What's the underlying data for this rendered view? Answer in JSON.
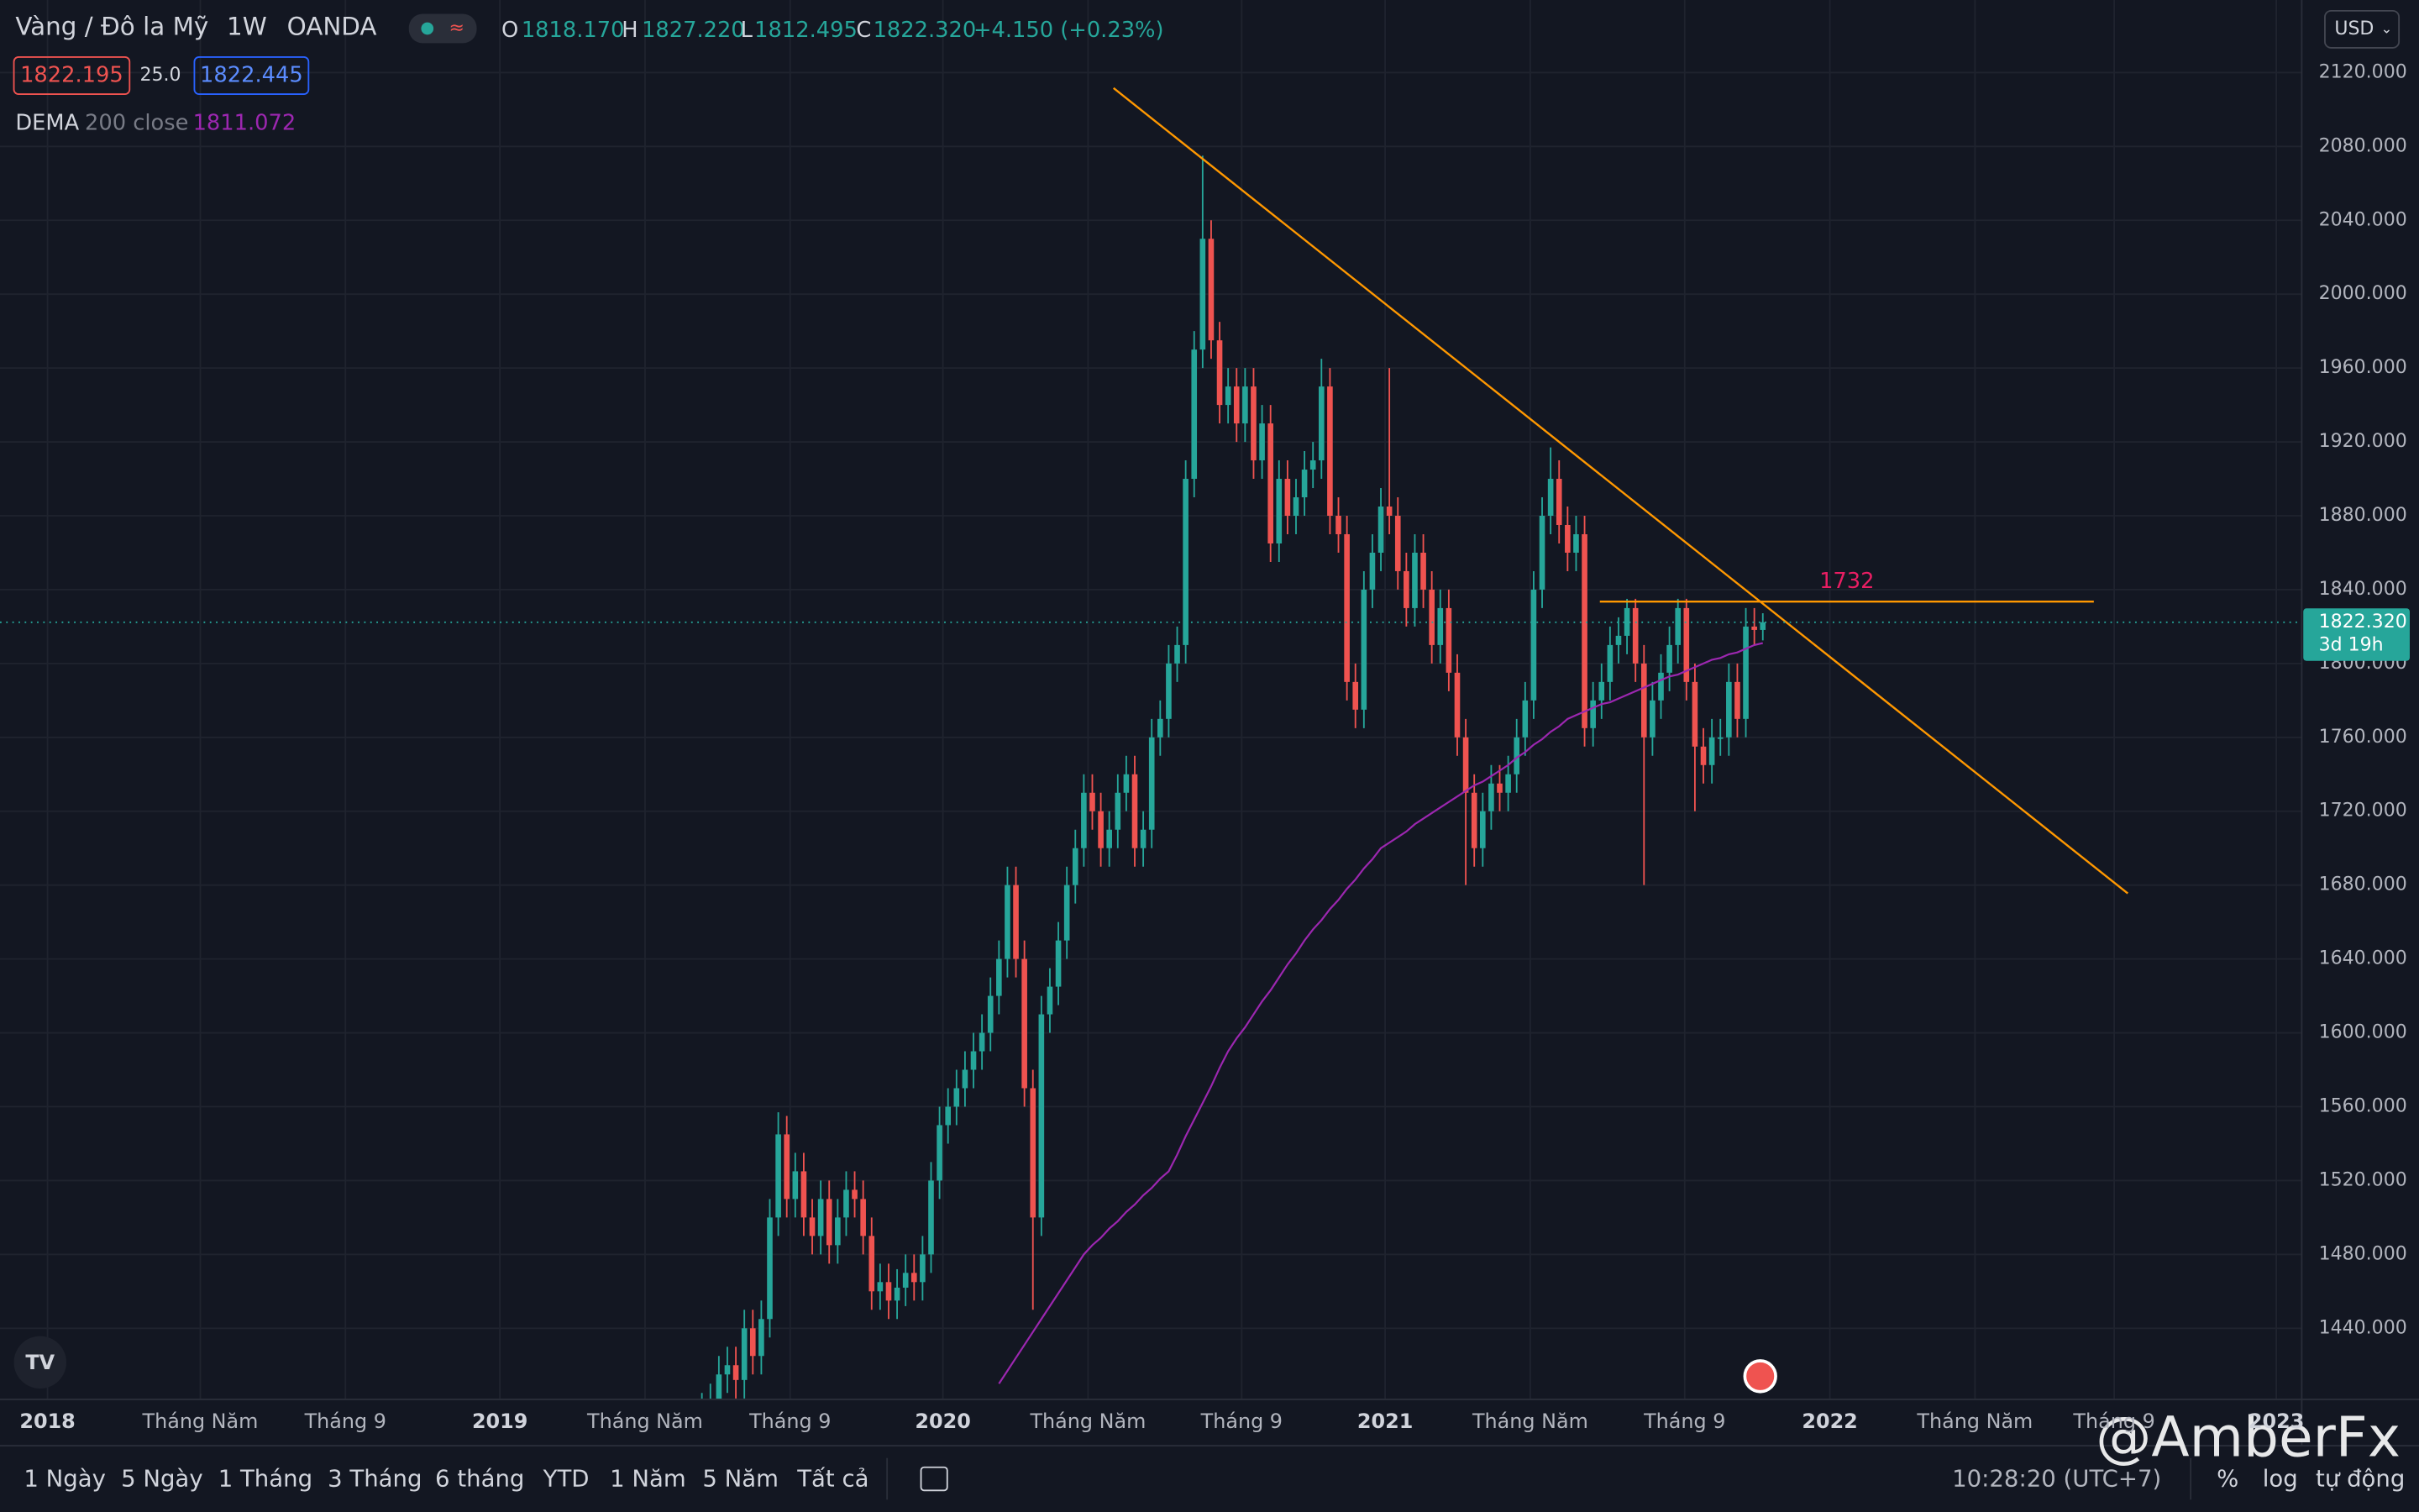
{
  "header": {
    "symbol": "Vàng / Đô la Mỹ",
    "interval": "1W",
    "exchange": "OANDA",
    "ohlc": [
      {
        "key": "O",
        "value": 1818.17,
        "label": "1818.170"
      },
      {
        "key": "H",
        "value": 1827.22,
        "label": "1827.220"
      },
      {
        "key": "L",
        "value": 1812.495,
        "label": "1812.495"
      },
      {
        "key": "C",
        "value": 1822.32,
        "label": "1822.320"
      }
    ],
    "change": "+4.150 (+0.23%)",
    "bid": "1822.195",
    "spread": "25.0",
    "ask": "1822.445",
    "currency": "USD"
  },
  "chart_data": {
    "type": "candlestick",
    "up_color": "#26a69a",
    "down_color": "#ef5350",
    "candles": [
      [
        1390,
        1405,
        1380,
        1395
      ],
      [
        1395,
        1410,
        1385,
        1400
      ],
      [
        1400,
        1425,
        1390,
        1415
      ],
      [
        1415,
        1430,
        1405,
        1420
      ],
      [
        1420,
        1430,
        1402,
        1412
      ],
      [
        1412,
        1450,
        1402,
        1440
      ],
      [
        1440,
        1450,
        1415,
        1425
      ],
      [
        1425,
        1455,
        1415,
        1445
      ],
      [
        1445,
        1510,
        1435,
        1500
      ],
      [
        1500,
        1557,
        1490,
        1545
      ],
      [
        1545,
        1555,
        1500,
        1510
      ],
      [
        1510,
        1535,
        1500,
        1525
      ],
      [
        1525,
        1535,
        1490,
        1500
      ],
      [
        1500,
        1510,
        1480,
        1490
      ],
      [
        1490,
        1520,
        1480,
        1510
      ],
      [
        1510,
        1520,
        1475,
        1485
      ],
      [
        1485,
        1510,
        1475,
        1500
      ],
      [
        1500,
        1525,
        1490,
        1515
      ],
      [
        1515,
        1525,
        1500,
        1510
      ],
      [
        1510,
        1520,
        1480,
        1490
      ],
      [
        1490,
        1500,
        1450,
        1460
      ],
      [
        1460,
        1475,
        1450,
        1465
      ],
      [
        1465,
        1475,
        1445,
        1455
      ],
      [
        1455,
        1472,
        1445,
        1462
      ],
      [
        1462,
        1480,
        1452,
        1470
      ],
      [
        1470,
        1480,
        1455,
        1465
      ],
      [
        1465,
        1490,
        1455,
        1480
      ],
      [
        1480,
        1530,
        1470,
        1520
      ],
      [
        1520,
        1560,
        1510,
        1550
      ],
      [
        1550,
        1570,
        1540,
        1560
      ],
      [
        1560,
        1580,
        1550,
        1570
      ],
      [
        1570,
        1590,
        1560,
        1580
      ],
      [
        1580,
        1600,
        1570,
        1590
      ],
      [
        1590,
        1610,
        1580,
        1600
      ],
      [
        1600,
        1630,
        1590,
        1620
      ],
      [
        1620,
        1650,
        1610,
        1640
      ],
      [
        1640,
        1690,
        1630,
        1680
      ],
      [
        1680,
        1690,
        1630,
        1640
      ],
      [
        1640,
        1650,
        1560,
        1570
      ],
      [
        1570,
        1580,
        1450,
        1500
      ],
      [
        1500,
        1620,
        1490,
        1610
      ],
      [
        1610,
        1635,
        1600,
        1625
      ],
      [
        1625,
        1660,
        1615,
        1650
      ],
      [
        1650,
        1690,
        1640,
        1680
      ],
      [
        1680,
        1710,
        1670,
        1700
      ],
      [
        1700,
        1740,
        1690,
        1730
      ],
      [
        1730,
        1740,
        1710,
        1720
      ],
      [
        1720,
        1730,
        1690,
        1700
      ],
      [
        1700,
        1720,
        1690,
        1710
      ],
      [
        1710,
        1740,
        1700,
        1730
      ],
      [
        1730,
        1750,
        1720,
        1740
      ],
      [
        1740,
        1750,
        1690,
        1700
      ],
      [
        1700,
        1720,
        1690,
        1710
      ],
      [
        1710,
        1770,
        1700,
        1760
      ],
      [
        1760,
        1780,
        1750,
        1770
      ],
      [
        1770,
        1810,
        1760,
        1800
      ],
      [
        1800,
        1820,
        1790,
        1810
      ],
      [
        1810,
        1910,
        1800,
        1900
      ],
      [
        1900,
        1980,
        1890,
        1970
      ],
      [
        1970,
        2075,
        1960,
        2030
      ],
      [
        2030,
        2040,
        1965,
        1975
      ],
      [
        1975,
        1985,
        1930,
        1940
      ],
      [
        1940,
        1960,
        1930,
        1950
      ],
      [
        1950,
        1960,
        1920,
        1930
      ],
      [
        1930,
        1960,
        1920,
        1950
      ],
      [
        1950,
        1960,
        1900,
        1910
      ],
      [
        1910,
        1940,
        1900,
        1930
      ],
      [
        1930,
        1940,
        1855,
        1865
      ],
      [
        1865,
        1910,
        1855,
        1900
      ],
      [
        1900,
        1910,
        1870,
        1880
      ],
      [
        1880,
        1900,
        1870,
        1890
      ],
      [
        1890,
        1915,
        1880,
        1905
      ],
      [
        1905,
        1920,
        1895,
        1910
      ],
      [
        1910,
        1965,
        1900,
        1950
      ],
      [
        1950,
        1960,
        1870,
        1880
      ],
      [
        1880,
        1890,
        1860,
        1870
      ],
      [
        1870,
        1880,
        1780,
        1790
      ],
      [
        1790,
        1800,
        1765,
        1775
      ],
      [
        1775,
        1850,
        1765,
        1840
      ],
      [
        1840,
        1870,
        1830,
        1860
      ],
      [
        1860,
        1895,
        1850,
        1885
      ],
      [
        1885,
        1960,
        1870,
        1880
      ],
      [
        1880,
        1890,
        1840,
        1850
      ],
      [
        1850,
        1860,
        1820,
        1830
      ],
      [
        1830,
        1870,
        1820,
        1860
      ],
      [
        1860,
        1870,
        1830,
        1840
      ],
      [
        1840,
        1850,
        1800,
        1810
      ],
      [
        1810,
        1840,
        1800,
        1830
      ],
      [
        1830,
        1840,
        1785,
        1795
      ],
      [
        1795,
        1805,
        1750,
        1760
      ],
      [
        1760,
        1770,
        1680,
        1730
      ],
      [
        1730,
        1740,
        1690,
        1700
      ],
      [
        1700,
        1730,
        1690,
        1720
      ],
      [
        1720,
        1745,
        1710,
        1735
      ],
      [
        1735,
        1745,
        1720,
        1730
      ],
      [
        1730,
        1750,
        1720,
        1740
      ],
      [
        1740,
        1770,
        1730,
        1760
      ],
      [
        1760,
        1790,
        1750,
        1780
      ],
      [
        1780,
        1850,
        1770,
        1840
      ],
      [
        1840,
        1890,
        1830,
        1880
      ],
      [
        1880,
        1917,
        1870,
        1900
      ],
      [
        1900,
        1910,
        1865,
        1875
      ],
      [
        1875,
        1885,
        1850,
        1860
      ],
      [
        1860,
        1880,
        1850,
        1870
      ],
      [
        1870,
        1880,
        1755,
        1765
      ],
      [
        1765,
        1790,
        1755,
        1780
      ],
      [
        1780,
        1800,
        1770,
        1790
      ],
      [
        1790,
        1820,
        1780,
        1810
      ],
      [
        1810,
        1825,
        1800,
        1815
      ],
      [
        1815,
        1835,
        1805,
        1830
      ],
      [
        1830,
        1835,
        1790,
        1800
      ],
      [
        1800,
        1810,
        1680,
        1760
      ],
      [
        1760,
        1790,
        1750,
        1780
      ],
      [
        1780,
        1805,
        1770,
        1795
      ],
      [
        1795,
        1820,
        1785,
        1810
      ],
      [
        1810,
        1835,
        1800,
        1830
      ],
      [
        1830,
        1835,
        1780,
        1790
      ],
      [
        1790,
        1800,
        1720,
        1755
      ],
      [
        1755,
        1765,
        1735,
        1745
      ],
      [
        1745,
        1770,
        1735,
        1760
      ],
      [
        1760,
        1770,
        1750,
        1760
      ],
      [
        1760,
        1800,
        1750,
        1790
      ],
      [
        1790,
        1800,
        1760,
        1770
      ],
      [
        1770,
        1830,
        1760,
        1820
      ],
      [
        1820,
        1830,
        1810,
        1818.17
      ],
      [
        1818.17,
        1827.22,
        1812.495,
        1822.32
      ]
    ],
    "series": [
      {
        "name": "DEMA",
        "params": "200 close",
        "color": "#9c27b0",
        "values": [
          null,
          null,
          null,
          null,
          null,
          null,
          null,
          null,
          null,
          null,
          null,
          null,
          null,
          null,
          null,
          null,
          null,
          null,
          null,
          null,
          null,
          null,
          null,
          null,
          null,
          null,
          null,
          null,
          null,
          null,
          null,
          null,
          null,
          null,
          null,
          1410,
          1417,
          1424,
          1431,
          1438,
          1445,
          1452,
          1459,
          1466,
          1473,
          1480,
          1485,
          1489,
          1494,
          1498,
          1503,
          1507,
          1512,
          1516,
          1521,
          1525,
          1534,
          1544,
          1553,
          1562,
          1571,
          1581,
          1590,
          1597,
          1603,
          1610,
          1617,
          1623,
          1630,
          1637,
          1643,
          1650,
          1656,
          1661,
          1667,
          1672,
          1678,
          1683,
          1689,
          1694,
          1700,
          1703,
          1706,
          1709,
          1713,
          1716,
          1719,
          1722,
          1725,
          1728,
          1731,
          1734,
          1736,
          1739,
          1742,
          1745,
          1749,
          1752,
          1756,
          1759,
          1763,
          1766,
          1770,
          1772,
          1774,
          1776,
          1778,
          1779,
          1781,
          1783,
          1785,
          1787,
          1789,
          1791,
          1793,
          1794,
          1796,
          1798,
          1800,
          1802,
          1803,
          1805,
          1806,
          1808,
          1810,
          1811.072
        ]
      }
    ],
    "lines": [
      {
        "color": "#ff9800",
        "points": [
          [
            48.5,
            2111.6
          ],
          [
            168,
            1675.5
          ]
        ]
      },
      {
        "color": "#ff9800",
        "label": "1732",
        "label_color": "#e91e63",
        "points": [
          [
            105.8,
            1833.5
          ],
          [
            164,
            1833.5
          ]
        ]
      }
    ],
    "ylim": [
      1401.5,
      2159.3
    ],
    "yticks": [
      {
        "value": 2120,
        "label": "2120.000"
      },
      {
        "value": 2080,
        "label": "2080.000"
      },
      {
        "value": 2040,
        "label": "2040.000"
      },
      {
        "value": 2000,
        "label": "2000.000"
      },
      {
        "value": 1960,
        "label": "1960.000"
      },
      {
        "value": 1920,
        "label": "1920.000"
      },
      {
        "value": 1880,
        "label": "1880.000"
      },
      {
        "value": 1840,
        "label": "1840.000"
      },
      {
        "value": 1800,
        "label": "1800.000"
      },
      {
        "value": 1760,
        "label": "1760.000"
      },
      {
        "value": 1720,
        "label": "1720.000"
      },
      {
        "value": 1680,
        "label": "1680.000"
      },
      {
        "value": 1640,
        "label": "1640.000"
      },
      {
        "value": 1600,
        "label": "1600.000"
      },
      {
        "value": 1560,
        "label": "1560.000"
      },
      {
        "value": 1520,
        "label": "1520.000"
      },
      {
        "value": 1480,
        "label": "1480.000"
      },
      {
        "value": 1440,
        "label": "1440.000"
      }
    ],
    "xlim": [
      -82.7,
      188.5
    ],
    "xticks": [
      {
        "value": -77.1,
        "label": "2018"
      },
      {
        "value": -59.1,
        "label": "Tháng Năm"
      },
      {
        "value": -42,
        "label": "Tháng 9"
      },
      {
        "value": -23.8,
        "label": "2019"
      },
      {
        "value": -6.7,
        "label": "Tháng Năm"
      },
      {
        "value": 10.4,
        "label": "Tháng 9"
      },
      {
        "value": 28.4,
        "label": "2020"
      },
      {
        "value": 45.5,
        "label": "Tháng Năm"
      },
      {
        "value": 63.6,
        "label": "Tháng 9"
      },
      {
        "value": 80.5,
        "label": "2021"
      },
      {
        "value": 97.6,
        "label": "Tháng Năm"
      },
      {
        "value": 115.8,
        "label": "Tháng 9"
      },
      {
        "value": 132.9,
        "label": "2022"
      },
      {
        "value": 150,
        "label": "Tháng Năm"
      },
      {
        "value": 166.4,
        "label": "Tháng 9"
      },
      {
        "value": 185.5,
        "label": "2023"
      }
    ],
    "grid": true,
    "last_price": {
      "value": 1822.32,
      "label": "1822.320"
    },
    "countdown": "3d 19h"
  },
  "toolbar": {
    "ranges": [
      "1 Ngày",
      "5 Ngày",
      "1 Tháng",
      "3 Tháng",
      "6 tháng",
      "YTD",
      "1 Năm",
      "5 Năm",
      "Tất cả"
    ],
    "clock": "10:28:20 (UTC+7)",
    "scale_options": [
      "%",
      "log",
      "tự động"
    ]
  },
  "watermark": "@AmberFx"
}
